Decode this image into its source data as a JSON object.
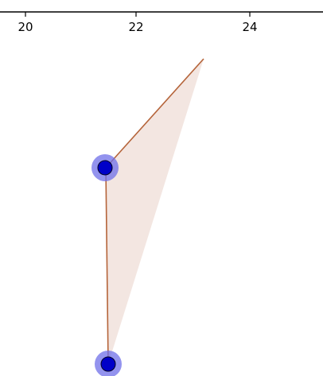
{
  "x_axis": {
    "tick_labels": [
      "20",
      "22",
      "24"
    ],
    "axis_color": "#000000"
  },
  "figure": {
    "polygon_fill": "#eedbd4",
    "polygon_fill_opacity": 0.7,
    "segment_color": "#b5643a",
    "point_fill": "#0000c8",
    "point_halo": "#6f6fe8"
  },
  "points": [
    {
      "name": "upper-point"
    },
    {
      "name": "lower-point"
    }
  ]
}
